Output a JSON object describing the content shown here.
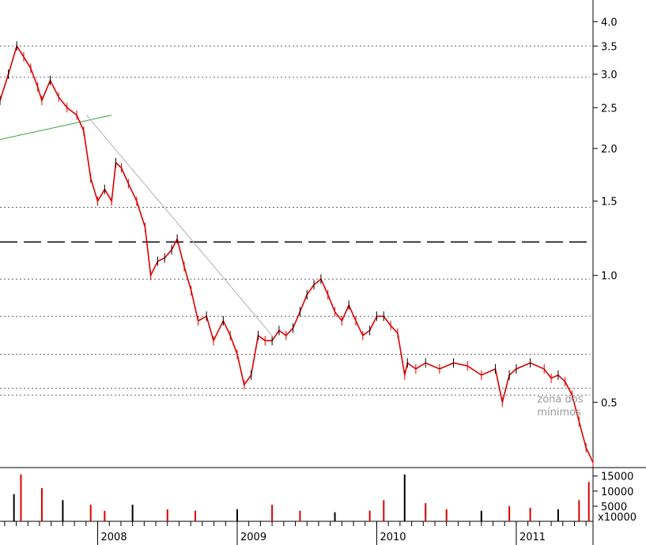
{
  "chart_data": [
    {
      "type": "line",
      "scale": "log",
      "ylim": [
        0.35,
        4.5
      ],
      "y_ticks": [
        "4.0",
        "3.5",
        "3.0",
        "2.5",
        "2.0",
        "1.5",
        "1.0",
        "0.5"
      ],
      "y_tick_values": [
        4.0,
        3.5,
        3.0,
        2.5,
        2.0,
        1.5,
        1.0,
        0.5
      ],
      "x_ticks": [
        "2008",
        "2009",
        "2010",
        "2011"
      ],
      "x_tick_values": [
        2008.0,
        2009.0,
        2010.0,
        2011.0
      ],
      "xlim": [
        2007.3,
        2011.55
      ],
      "series": [
        {
          "x": [
            2007.3,
            2007.36,
            2007.42,
            2007.47,
            2007.52,
            2007.57,
            2007.6,
            2007.66,
            2007.72,
            2007.78,
            2007.85,
            2007.9,
            2007.95,
            2008.0,
            2008.05,
            2008.1,
            2008.13,
            2008.17,
            2008.22,
            2008.28,
            2008.34,
            2008.38,
            2008.43,
            2008.48,
            2008.53,
            2008.57,
            2008.62,
            2008.67,
            2008.72,
            2008.78,
            2008.83,
            2008.9,
            2008.95,
            2009.0,
            2009.05,
            2009.1,
            2009.15,
            2009.2,
            2009.25,
            2009.3,
            2009.35,
            2009.4,
            2009.45,
            2009.5,
            2009.55,
            2009.6,
            2009.65,
            2009.7,
            2009.75,
            2009.8,
            2009.85,
            2009.9,
            2009.95,
            2010.0,
            2010.05,
            2010.1,
            2010.15,
            2010.2,
            2010.22,
            2010.28,
            2010.35,
            2010.45,
            2010.55,
            2010.65,
            2010.75,
            2010.85,
            2010.9,
            2010.95,
            2011.0,
            2011.1,
            2011.2,
            2011.25,
            2011.3,
            2011.35,
            2011.4,
            2011.45,
            2011.5,
            2011.55
          ],
          "values": [
            2.6,
            3.0,
            3.5,
            3.3,
            3.1,
            2.8,
            2.6,
            2.9,
            2.65,
            2.5,
            2.4,
            2.2,
            1.7,
            1.5,
            1.6,
            1.5,
            1.85,
            1.8,
            1.65,
            1.5,
            1.3,
            1.0,
            1.08,
            1.1,
            1.15,
            1.22,
            1.05,
            0.92,
            0.78,
            0.8,
            0.7,
            0.78,
            0.72,
            0.65,
            0.55,
            0.58,
            0.72,
            0.7,
            0.7,
            0.74,
            0.72,
            0.75,
            0.82,
            0.9,
            0.95,
            0.98,
            0.9,
            0.82,
            0.78,
            0.85,
            0.78,
            0.72,
            0.74,
            0.8,
            0.8,
            0.76,
            0.73,
            0.58,
            0.62,
            0.6,
            0.62,
            0.6,
            0.62,
            0.61,
            0.58,
            0.6,
            0.5,
            0.58,
            0.6,
            0.62,
            0.6,
            0.57,
            0.58,
            0.56,
            0.52,
            0.45,
            0.39,
            0.36
          ]
        }
      ],
      "horizontal_levels": [
        {
          "value": 3.5,
          "style": "dotted"
        },
        {
          "value": 2.95,
          "style": "dotted"
        },
        {
          "value": 1.45,
          "style": "dotted"
        },
        {
          "value": 1.2,
          "style": "dashed"
        },
        {
          "value": 0.98,
          "style": "dotted"
        },
        {
          "value": 0.8,
          "style": "dotted"
        },
        {
          "value": 0.65,
          "style": "dotted"
        },
        {
          "value": 0.54,
          "style": "dotted"
        },
        {
          "value": 0.52,
          "style": "dotted"
        }
      ],
      "trendlines": [
        {
          "color": "#3aa045",
          "from": [
            2007.3,
            2.1
          ],
          "to": [
            2008.1,
            2.4
          ]
        },
        {
          "color": "#b0b0b0",
          "from": [
            2007.92,
            2.4
          ],
          "to": [
            2009.25,
            0.72
          ]
        }
      ],
      "annotations": [
        {
          "text": "zona dos",
          "x": 2011.15,
          "y": 0.5
        },
        {
          "text": "mínimos",
          "x": 2011.15,
          "y": 0.465
        }
      ],
      "colors": {
        "up": "#000000",
        "down": "#dd0000",
        "accent_green": "#3aa045"
      }
    },
    {
      "type": "bar",
      "ylim": [
        0,
        17000
      ],
      "y_ticks": [
        "15000",
        "10000",
        "5000"
      ],
      "y_tick_values": [
        15000,
        10000,
        5000
      ],
      "unit_label": "x10000",
      "x": [
        2007.4,
        2007.45,
        2007.6,
        2007.75,
        2007.95,
        2008.05,
        2008.25,
        2008.5,
        2008.7,
        2009.0,
        2009.25,
        2009.45,
        2009.7,
        2009.95,
        2010.05,
        2010.2,
        2010.35,
        2010.5,
        2010.75,
        2010.95,
        2011.1,
        2011.3,
        2011.45,
        2011.52
      ],
      "values": [
        9000,
        15500,
        11000,
        7000,
        5500,
        3500,
        5500,
        4000,
        3500,
        4000,
        5500,
        3500,
        3000,
        3500,
        7000,
        15500,
        6000,
        4000,
        3500,
        5000,
        4500,
        4000,
        7000,
        13000
      ],
      "colors": {
        "up": "#000000",
        "down": "#dd0000"
      }
    }
  ]
}
